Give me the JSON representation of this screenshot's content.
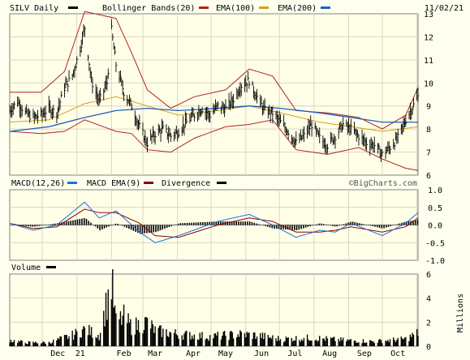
{
  "header": {
    "symbol": "SILV Daily",
    "indicators": [
      {
        "label": "Bollinger Bands(20)",
        "color": "#b22222"
      },
      {
        "label": "EMA(100)",
        "color": "#d4a017"
      },
      {
        "label": "EMA(200)",
        "color": "#1f5fbf"
      }
    ],
    "date": "11/02/21"
  },
  "watermark": "©BigCharts.com",
  "macd_legend": [
    {
      "label": "MACD(12,26)",
      "color": "#000000"
    },
    {
      "label": "MACD EMA(9)",
      "color": "#1f6fd6"
    },
    {
      "label": "Divergence",
      "color": "#8b0000"
    }
  ],
  "volume_legend": {
    "label": "Volume",
    "unit": "Millions"
  },
  "colors": {
    "background": "#fffff0",
    "pane_background": "#ffffe8",
    "grid": "#d6d6c2",
    "border": "#808080",
    "price_bars": "#000000",
    "bollinger": "#b22222",
    "ema100": "#d4a017",
    "ema200": "#1f5fbf"
  },
  "chart_data": [
    {
      "type": "line",
      "title": "SILV Daily",
      "y_ticks": [
        "13",
        "12",
        "11",
        "10",
        "9",
        "8",
        "7",
        "6"
      ],
      "ylim": [
        6,
        13
      ],
      "x_ticks": [
        "Dec",
        "21",
        "Feb",
        "Mar",
        "Apr",
        "May",
        "Jun",
        "Jul",
        "Aug",
        "Sep",
        "Oct"
      ],
      "price_anchors": [
        [
          "2020-11-02",
          8.8
        ],
        [
          "2020-11-09",
          9.2
        ],
        [
          "2020-11-16",
          8.7
        ],
        [
          "2020-11-23",
          8.5
        ],
        [
          "2020-11-30",
          8.6
        ],
        [
          "2020-12-07",
          8.9
        ],
        [
          "2020-12-14",
          8.7
        ],
        [
          "2020-12-21",
          9.8
        ],
        [
          "2020-12-28",
          10.3
        ],
        [
          "2021-01-04",
          11.5
        ],
        [
          "2021-01-08",
          12.4
        ],
        [
          "2021-01-14",
          10.1
        ],
        [
          "2021-01-21",
          9.2
        ],
        [
          "2021-01-28",
          10.0
        ],
        [
          "2021-02-01",
          12.3
        ],
        [
          "2021-02-05",
          10.8
        ],
        [
          "2021-02-12",
          9.6
        ],
        [
          "2021-02-19",
          9.0
        ],
        [
          "2021-02-26",
          8.1
        ],
        [
          "2021-03-05",
          7.4
        ],
        [
          "2021-03-12",
          7.8
        ],
        [
          "2021-03-19",
          8.0
        ],
        [
          "2021-03-26",
          7.7
        ],
        [
          "2021-04-02",
          7.9
        ],
        [
          "2021-04-09",
          8.3
        ],
        [
          "2021-04-16",
          8.6
        ],
        [
          "2021-04-23",
          8.9
        ],
        [
          "2021-04-30",
          8.6
        ],
        [
          "2021-05-07",
          9.0
        ],
        [
          "2021-05-14",
          8.9
        ],
        [
          "2021-05-21",
          9.3
        ],
        [
          "2021-05-28",
          9.9
        ],
        [
          "2021-06-04",
          10.1
        ],
        [
          "2021-06-11",
          9.4
        ],
        [
          "2021-06-18",
          8.8
        ],
        [
          "2021-06-25",
          8.7
        ],
        [
          "2021-07-02",
          8.3
        ],
        [
          "2021-07-09",
          7.9
        ],
        [
          "2021-07-16",
          7.4
        ],
        [
          "2021-07-23",
          7.7
        ],
        [
          "2021-07-30",
          8.2
        ],
        [
          "2021-08-06",
          7.6
        ],
        [
          "2021-08-13",
          7.3
        ],
        [
          "2021-08-20",
          7.7
        ],
        [
          "2021-08-27",
          8.2
        ],
        [
          "2021-09-03",
          8.0
        ],
        [
          "2021-09-10",
          7.7
        ],
        [
          "2021-09-17",
          7.4
        ],
        [
          "2021-09-24",
          7.3
        ],
        [
          "2021-10-01",
          6.9
        ],
        [
          "2021-10-08",
          7.2
        ],
        [
          "2021-10-15",
          7.6
        ],
        [
          "2021-10-22",
          8.4
        ],
        [
          "2021-11-02",
          9.4
        ]
      ],
      "bollinger_upper": [
        [
          "2020-11-02",
          9.6
        ],
        [
          "2020-11-30",
          9.6
        ],
        [
          "2020-12-21",
          10.5
        ],
        [
          "2021-01-08",
          13.1
        ],
        [
          "2021-02-05",
          12.8
        ],
        [
          "2021-02-19",
          11.3
        ],
        [
          "2021-03-05",
          9.7
        ],
        [
          "2021-03-26",
          8.9
        ],
        [
          "2021-04-16",
          9.4
        ],
        [
          "2021-05-14",
          9.7
        ],
        [
          "2021-06-04",
          10.6
        ],
        [
          "2021-06-25",
          10.3
        ],
        [
          "2021-07-16",
          8.8
        ],
        [
          "2021-08-13",
          8.7
        ],
        [
          "2021-09-10",
          8.5
        ],
        [
          "2021-10-01",
          8.0
        ],
        [
          "2021-10-22",
          8.6
        ],
        [
          "2021-11-02",
          9.8
        ]
      ],
      "bollinger_lower": [
        [
          "2020-11-02",
          7.9
        ],
        [
          "2020-11-30",
          7.8
        ],
        [
          "2020-12-21",
          7.9
        ],
        [
          "2021-01-08",
          8.4
        ],
        [
          "2021-02-05",
          7.9
        ],
        [
          "2021-02-19",
          7.8
        ],
        [
          "2021-03-05",
          7.1
        ],
        [
          "2021-03-26",
          7.0
        ],
        [
          "2021-04-16",
          7.6
        ],
        [
          "2021-05-14",
          8.1
        ],
        [
          "2021-06-04",
          8.2
        ],
        [
          "2021-06-25",
          8.4
        ],
        [
          "2021-07-16",
          7.1
        ],
        [
          "2021-08-13",
          6.9
        ],
        [
          "2021-09-10",
          7.2
        ],
        [
          "2021-10-01",
          6.7
        ],
        [
          "2021-10-22",
          6.3
        ],
        [
          "2021-11-02",
          6.2
        ]
      ],
      "ema100": [
        [
          "2020-11-02",
          8.3
        ],
        [
          "2020-12-07",
          8.4
        ],
        [
          "2021-01-08",
          9.1
        ],
        [
          "2021-02-05",
          9.4
        ],
        [
          "2021-03-05",
          9.0
        ],
        [
          "2021-04-02",
          8.6
        ],
        [
          "2021-05-07",
          8.8
        ],
        [
          "2021-06-04",
          9.0
        ],
        [
          "2021-07-02",
          8.7
        ],
        [
          "2021-08-06",
          8.3
        ],
        [
          "2021-09-03",
          8.1
        ],
        [
          "2021-10-01",
          7.9
        ],
        [
          "2021-11-02",
          8.1
        ]
      ],
      "ema200": [
        [
          "2020-11-02",
          7.9
        ],
        [
          "2020-12-07",
          8.1
        ],
        [
          "2021-01-08",
          8.5
        ],
        [
          "2021-02-05",
          8.8
        ],
        [
          "2021-03-05",
          8.9
        ],
        [
          "2021-04-02",
          8.8
        ],
        [
          "2021-05-07",
          8.9
        ],
        [
          "2021-06-04",
          9.0
        ],
        [
          "2021-07-02",
          8.9
        ],
        [
          "2021-08-06",
          8.7
        ],
        [
          "2021-09-03",
          8.5
        ],
        [
          "2021-10-01",
          8.3
        ],
        [
          "2021-11-02",
          8.3
        ]
      ]
    },
    {
      "type": "line",
      "title": "MACD(12,26)",
      "y_ticks": [
        "1.0",
        "0.5",
        "0.0",
        "-0.5",
        "-1.0"
      ],
      "ylim": [
        -1.0,
        1.0
      ],
      "macd": [
        [
          "2020-11-02",
          0.05
        ],
        [
          "2020-11-23",
          -0.15
        ],
        [
          "2020-12-14",
          0.0
        ],
        [
          "2021-01-08",
          0.65
        ],
        [
          "2021-01-21",
          0.2
        ],
        [
          "2021-02-05",
          0.4
        ],
        [
          "2021-02-26",
          -0.2
        ],
        [
          "2021-03-12",
          -0.5
        ],
        [
          "2021-04-02",
          -0.3
        ],
        [
          "2021-05-07",
          0.1
        ],
        [
          "2021-06-04",
          0.3
        ],
        [
          "2021-06-25",
          0.0
        ],
        [
          "2021-07-16",
          -0.35
        ],
        [
          "2021-08-06",
          -0.15
        ],
        [
          "2021-08-20",
          -0.2
        ],
        [
          "2021-09-03",
          0.05
        ],
        [
          "2021-10-01",
          -0.3
        ],
        [
          "2021-10-22",
          0.05
        ],
        [
          "2021-11-02",
          0.35
        ]
      ],
      "signal": [
        [
          "2020-11-02",
          0.05
        ],
        [
          "2020-11-23",
          -0.1
        ],
        [
          "2020-12-14",
          -0.05
        ],
        [
          "2021-01-08",
          0.45
        ],
        [
          "2021-01-21",
          0.35
        ],
        [
          "2021-02-05",
          0.35
        ],
        [
          "2021-02-26",
          0.05
        ],
        [
          "2021-03-12",
          -0.3
        ],
        [
          "2021-04-02",
          -0.35
        ],
        [
          "2021-05-07",
          0.0
        ],
        [
          "2021-06-04",
          0.2
        ],
        [
          "2021-06-25",
          0.1
        ],
        [
          "2021-07-16",
          -0.2
        ],
        [
          "2021-08-06",
          -0.2
        ],
        [
          "2021-08-20",
          -0.15
        ],
        [
          "2021-09-03",
          -0.05
        ],
        [
          "2021-10-01",
          -0.2
        ],
        [
          "2021-10-22",
          -0.05
        ],
        [
          "2021-11-02",
          0.2
        ]
      ]
    },
    {
      "type": "area",
      "title": "Volume",
      "y_ticks": [
        "6",
        "4",
        "2",
        "0"
      ],
      "ylabel": "Millions",
      "ylim": [
        0,
        6
      ],
      "volume": [
        [
          "2020-11-02",
          0.5
        ],
        [
          "2020-11-16",
          0.3
        ],
        [
          "2020-12-07",
          0.3
        ],
        [
          "2020-12-28",
          0.9
        ],
        [
          "2021-01-08",
          1.4
        ],
        [
          "2021-01-21",
          0.9
        ],
        [
          "2021-02-01",
          5.3
        ],
        [
          "2021-02-05",
          2.0
        ],
        [
          "2021-02-12",
          2.4
        ],
        [
          "2021-02-19",
          1.6
        ],
        [
          "2021-03-05",
          2.0
        ],
        [
          "2021-03-12",
          1.3
        ],
        [
          "2021-04-02",
          1.0
        ],
        [
          "2021-04-30",
          0.8
        ],
        [
          "2021-05-28",
          1.0
        ],
        [
          "2021-06-11",
          0.9
        ],
        [
          "2021-07-02",
          0.6
        ],
        [
          "2021-07-30",
          0.7
        ],
        [
          "2021-08-27",
          0.5
        ],
        [
          "2021-09-24",
          0.4
        ],
        [
          "2021-10-22",
          0.6
        ],
        [
          "2021-11-02",
          1.1
        ]
      ]
    }
  ]
}
